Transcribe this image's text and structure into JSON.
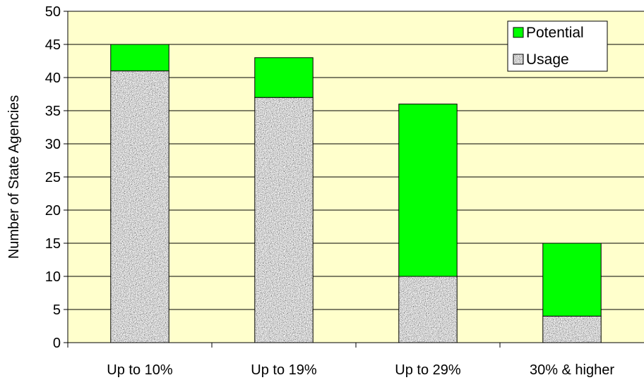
{
  "chart_data": {
    "type": "bar",
    "stacked": true,
    "categories": [
      "Up to 10%",
      "Up to 19%",
      "Up to 29%",
      "30% & higher"
    ],
    "series": [
      {
        "name": "Usage",
        "values": [
          41,
          37,
          10,
          4
        ],
        "pattern": "gray-speckle"
      },
      {
        "name": "Potential",
        "values": [
          4,
          6,
          26,
          11
        ],
        "color": "#00ff00"
      }
    ],
    "ylabel": "Number of State Agencies",
    "xlabel": "",
    "ylim": [
      0,
      50
    ],
    "yticks": [
      0,
      5,
      10,
      15,
      20,
      25,
      30,
      35,
      40,
      45,
      50
    ],
    "grid": true,
    "legend": "top-right",
    "legend_order": [
      "Potential",
      "Usage"
    ],
    "colors": {
      "plot_background": "#ffffcc",
      "gridline": "#000000",
      "bar_outline": "#000000"
    }
  }
}
